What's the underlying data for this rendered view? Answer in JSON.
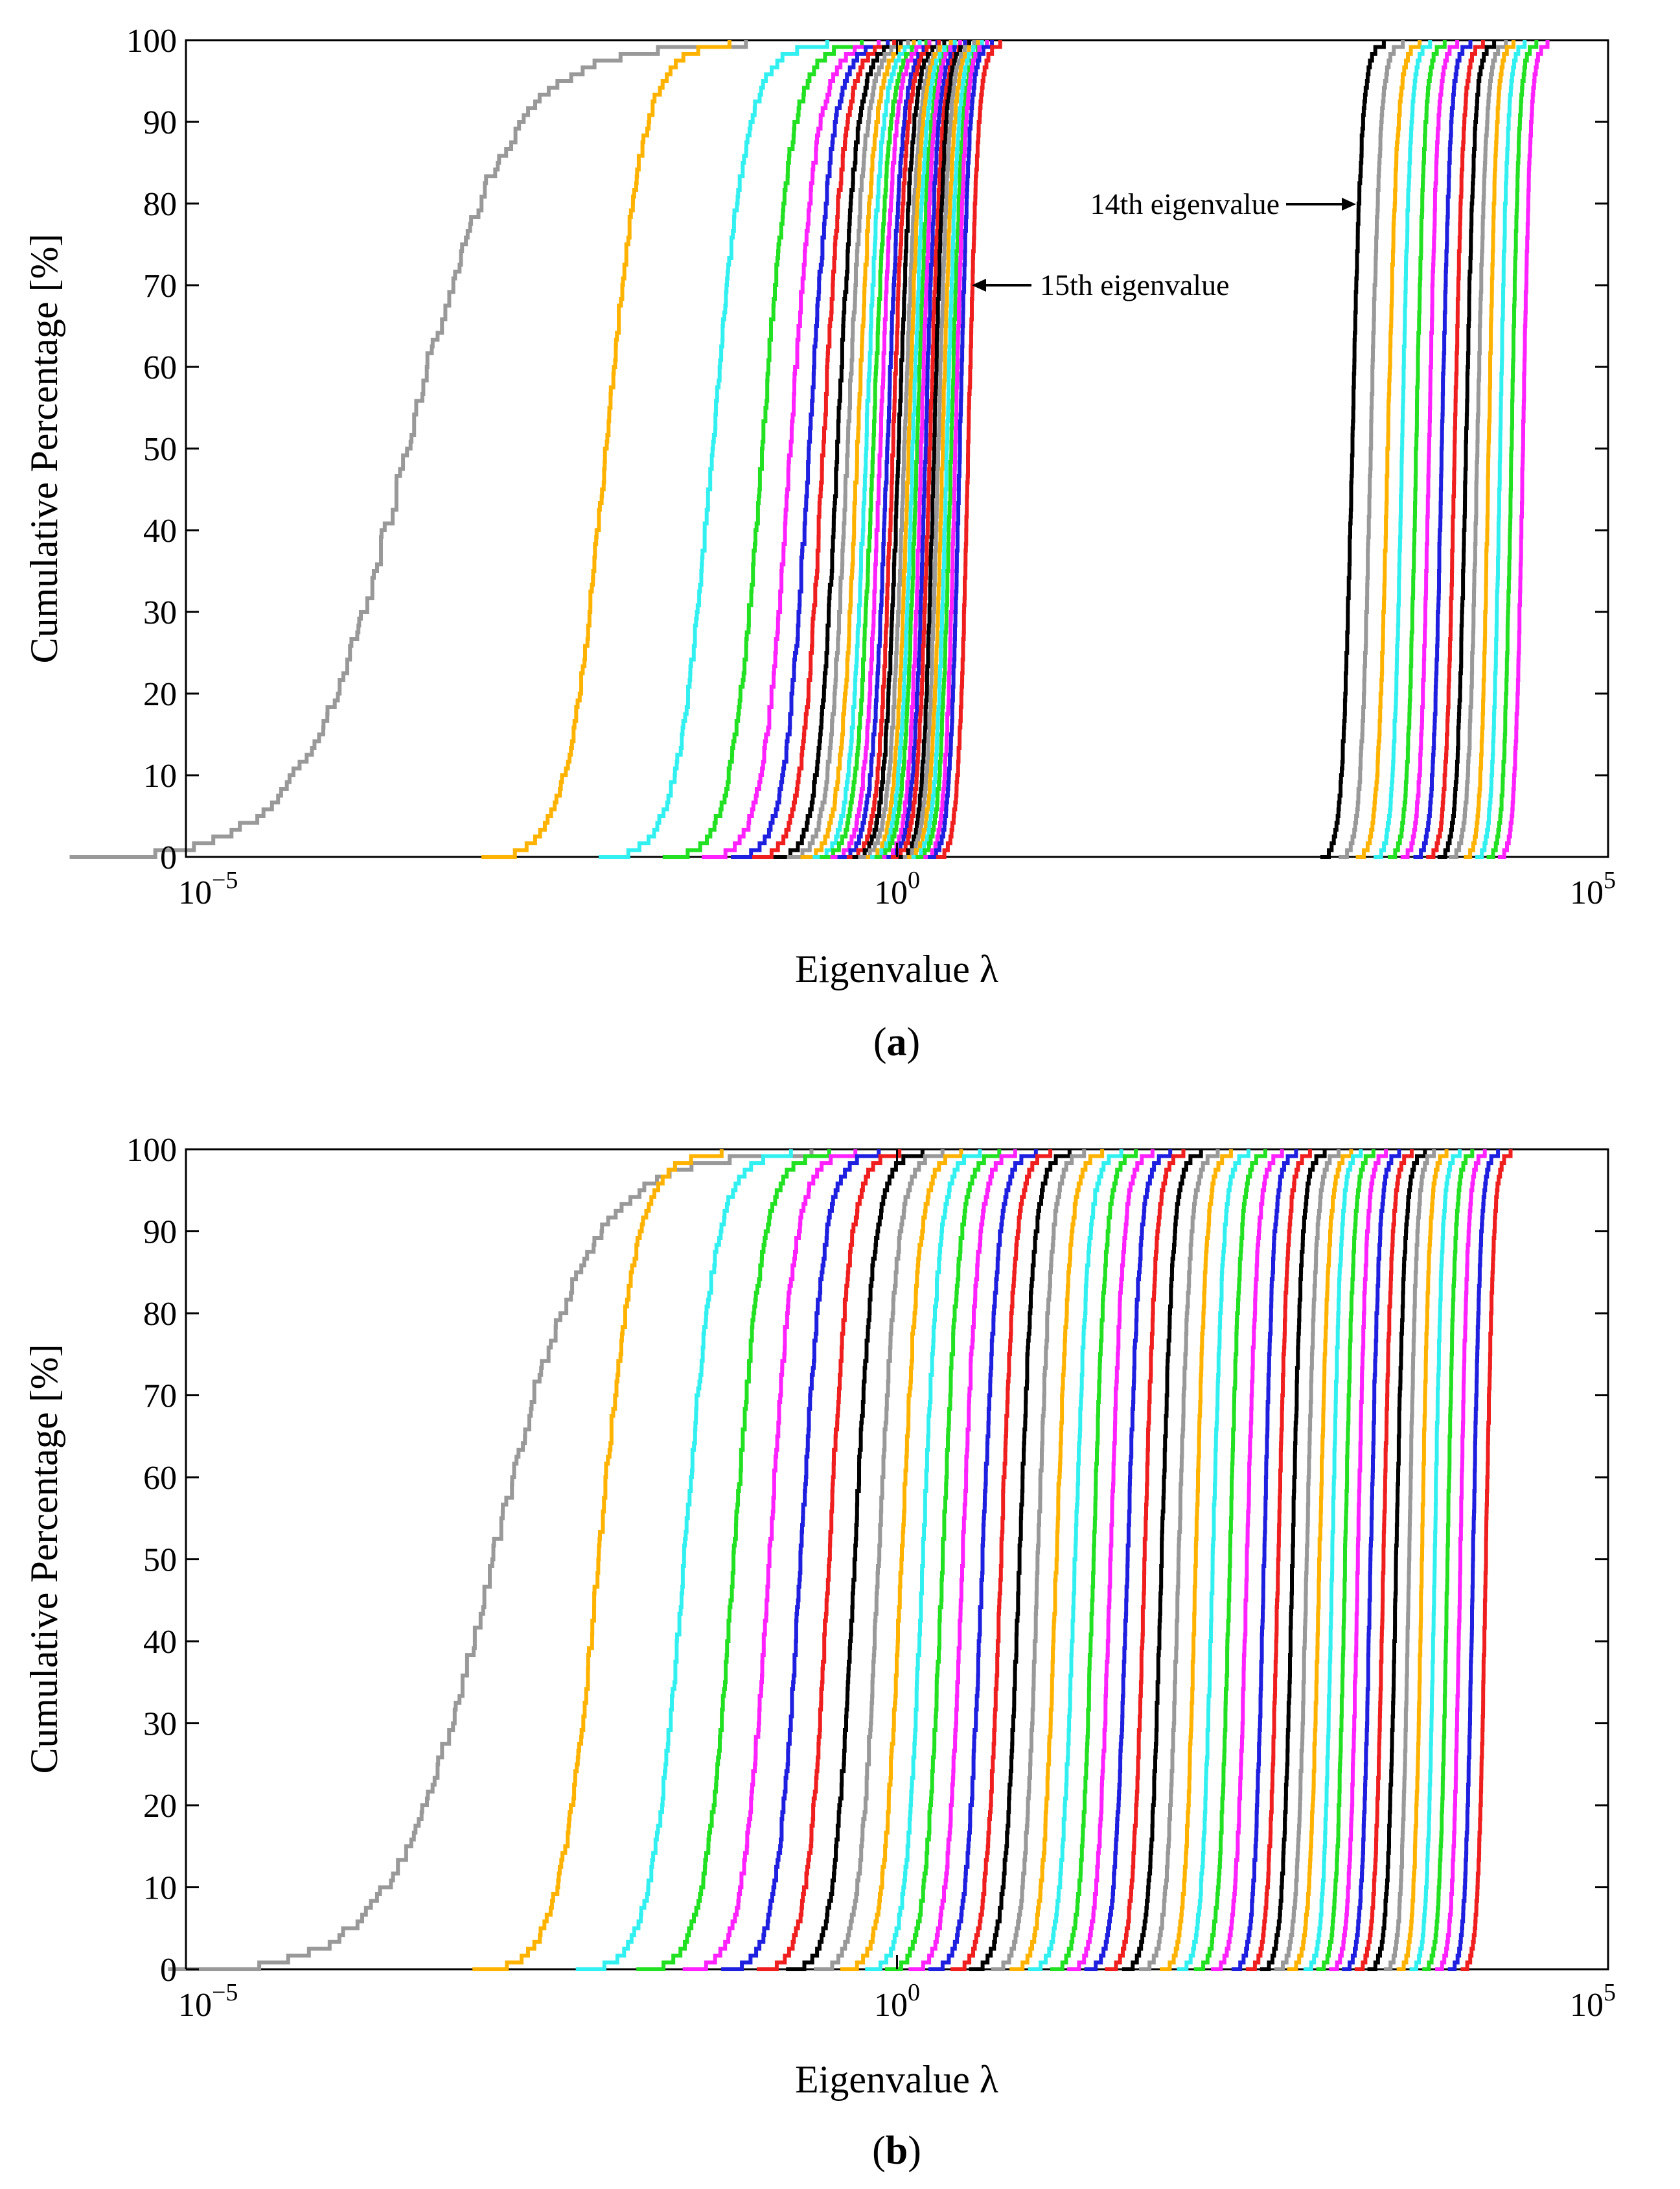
{
  "colors": {
    "cycle": [
      "#999999",
      "#FFB300",
      "#33F0F0",
      "#22E022",
      "#FF22FF",
      "#1F1FE0",
      "#F01F1F",
      "#000000"
    ],
    "axis": "#000000",
    "background": "#ffffff"
  },
  "chart_data": [
    {
      "id": "a",
      "type": "line",
      "subtype": "empirical-cdf",
      "caption_letter": "a",
      "xlabel": "Eigenvalue λ",
      "ylabel": "Cumulative Percentage [%]",
      "xscale": "log",
      "xlim": [
        1e-05,
        100000
      ],
      "ylim": [
        0,
        100
      ],
      "xticks": [
        {
          "base": "10",
          "exp": "−5",
          "value": 1e-05
        },
        {
          "base": "10",
          "exp": "0",
          "value": 1
        },
        {
          "base": "10",
          "exp": "5",
          "value": 100000
        }
      ],
      "yticks": [
        "0",
        "10",
        "20",
        "30",
        "40",
        "50",
        "60",
        "70",
        "80",
        "90",
        "100"
      ],
      "grid": false,
      "legend": "none",
      "annotations": [
        {
          "text": "14th eigenvalue",
          "arrow_to_log10_lambda": 3.15,
          "at_percent": 80,
          "text_side": "left"
        },
        {
          "text": "15th eigenvalue",
          "arrow_to_log10_lambda": 0.4,
          "at_percent": 70,
          "text_side": "right"
        }
      ],
      "series_log10_median_lambda": [
        -3.45,
        -2.05,
        -1.3,
        -0.95,
        -0.75,
        -0.62,
        -0.52,
        -0.42,
        -0.35,
        -0.28,
        -0.22,
        -0.17,
        -0.12,
        -0.07,
        -0.03,
        0.01,
        0.05,
        0.08,
        0.11,
        0.14,
        0.17,
        0.2,
        0.23,
        0.26,
        0.29,
        0.32,
        0.35,
        0.38,
        0.41,
        0.44,
        0.5,
        3.2,
        3.33,
        3.45,
        3.55,
        3.65,
        3.74,
        3.83,
        3.92,
        4.0,
        4.08,
        4.16,
        4.24,
        4.32,
        4.4
      ],
      "series_log10_halfwidth": [
        0.95,
        0.35,
        0.32,
        0.28,
        0.25,
        0.22,
        0.2,
        0.18,
        0.17,
        0.16,
        0.15,
        0.15,
        0.14,
        0.14,
        0.13,
        0.13,
        0.13,
        0.12,
        0.12,
        0.12,
        0.11,
        0.11,
        0.11,
        0.1,
        0.1,
        0.1,
        0.1,
        0.1,
        0.09,
        0.09,
        0.09,
        0.09,
        0.09,
        0.09,
        0.08,
        0.08,
        0.08,
        0.08,
        0.08,
        0.08,
        0.08,
        0.07,
        0.07,
        0.07,
        0.07
      ]
    },
    {
      "id": "b",
      "type": "line",
      "subtype": "empirical-cdf",
      "caption_letter": "b",
      "xlabel": "Eigenvalue λ",
      "ylabel": "Cumulative Percentage [%]",
      "xscale": "log",
      "xlim": [
        1e-05,
        100000
      ],
      "ylim": [
        0,
        100
      ],
      "xticks": [
        {
          "base": "10",
          "exp": "−5",
          "value": 1e-05
        },
        {
          "base": "10",
          "exp": "0",
          "value": 1
        },
        {
          "base": "10",
          "exp": "5",
          "value": 100000
        }
      ],
      "yticks": [
        "0",
        "10",
        "20",
        "30",
        "40",
        "50",
        "60",
        "70",
        "80",
        "90",
        "100"
      ],
      "grid": false,
      "legend": "none",
      "annotations": [],
      "series_log10_median_lambda": [
        -2.85,
        -2.1,
        -1.5,
        -1.15,
        -0.9,
        -0.68,
        -0.48,
        -0.3,
        -0.13,
        0.03,
        0.18,
        0.32,
        0.46,
        0.6,
        0.73,
        0.86,
        0.99,
        1.12,
        1.25,
        1.38,
        1.5,
        1.62,
        1.74,
        1.86,
        1.98,
        2.1,
        2.22,
        2.34,
        2.46,
        2.58,
        2.68,
        2.78,
        2.88,
        2.97,
        3.06,
        3.15,
        3.24,
        3.33,
        3.42,
        3.51,
        3.6,
        3.69,
        3.78,
        3.87,
        3.96,
        4.05,
        4.14
      ],
      "series_log10_halfwidth": [
        0.9,
        0.35,
        0.3,
        0.27,
        0.24,
        0.22,
        0.2,
        0.19,
        0.18,
        0.17,
        0.16,
        0.16,
        0.15,
        0.15,
        0.14,
        0.14,
        0.13,
        0.13,
        0.13,
        0.12,
        0.12,
        0.12,
        0.11,
        0.11,
        0.11,
        0.1,
        0.1,
        0.1,
        0.1,
        0.09,
        0.09,
        0.09,
        0.09,
        0.09,
        0.08,
        0.08,
        0.08,
        0.08,
        0.08,
        0.08,
        0.07,
        0.07,
        0.07,
        0.07,
        0.07,
        0.07,
        0.07
      ]
    }
  ]
}
